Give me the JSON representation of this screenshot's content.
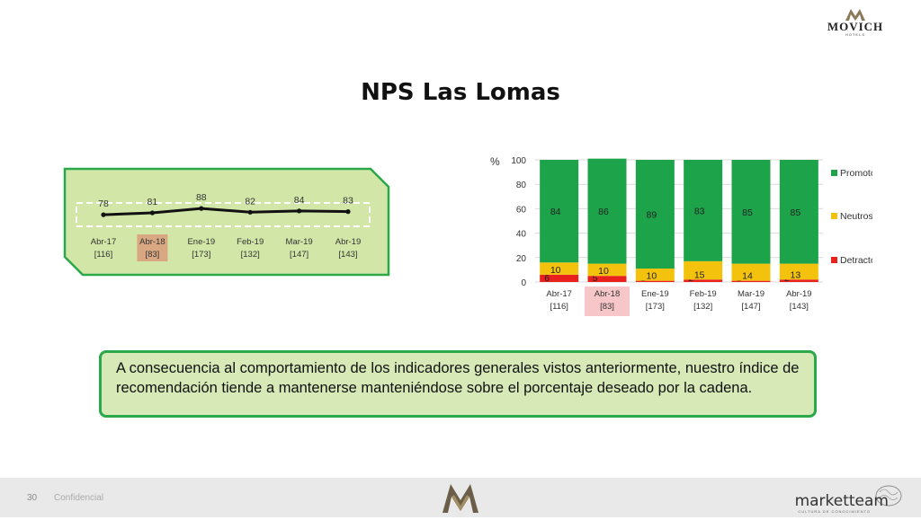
{
  "brand": {
    "name": "MOVICH",
    "sub": "HOTELS"
  },
  "title": "NPS Las Lomas",
  "note": "A consecuencia al comportamiento de los indicadores generales vistos anteriormente, nuestro índice de recomendación tiende a mantenerse manteniéndose sobre el porcentaje deseado por la cadena.",
  "footer": {
    "page": "30",
    "confidential": "Confidencial",
    "company": "marketteam",
    "company_sub": "CULTURA DE CONOCIMIENTO"
  },
  "colors": {
    "promotores": "#1da34a",
    "neutros": "#f3c20d",
    "detractores": "#e8211c",
    "panel": "#d2e6a7",
    "panel_border": "#2aa84a",
    "highlight_line": "#d9a882",
    "highlight_bar": "#f7c6c8"
  },
  "chart_data": [
    {
      "type": "line",
      "categories": [
        "Abr-17",
        "Abr-18",
        "Ene-19",
        "Feb-19",
        "Mar-19",
        "Abr-19"
      ],
      "sample_sizes": [
        "[116]",
        "[83]",
        "[173]",
        "[132]",
        "[147]",
        "[143]"
      ],
      "values": [
        78,
        81,
        88,
        82,
        84,
        83
      ],
      "highlight_index": 1
    },
    {
      "type": "bar",
      "stacked": true,
      "ylabel": "%",
      "ylim": [
        0,
        100
      ],
      "yticks": [
        0,
        20,
        40,
        60,
        80,
        100
      ],
      "categories": [
        "Abr-17",
        "Abr-18",
        "Ene-19",
        "Feb-19",
        "Mar-19",
        "Abr-19"
      ],
      "sample_sizes": [
        "[116]",
        "[83]",
        "[173]",
        "[132]",
        "[147]",
        "[143]"
      ],
      "highlight_index": 1,
      "legend_position": "right",
      "series": [
        {
          "name": "Detractores",
          "values": [
            6,
            5,
            1,
            2,
            1,
            2
          ]
        },
        {
          "name": "Neutros",
          "values": [
            10,
            10,
            10,
            15,
            14,
            13
          ]
        },
        {
          "name": "Promotores",
          "values": [
            84,
            86,
            89,
            83,
            85,
            85
          ]
        }
      ]
    }
  ]
}
